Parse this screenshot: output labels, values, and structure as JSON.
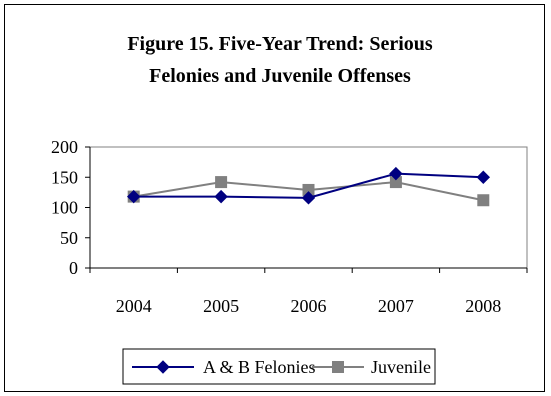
{
  "chart_data": {
    "type": "line",
    "title_lines": [
      "Figure 15.  Five-Year Trend:  Serious",
      "Felonies and Juvenile Offenses"
    ],
    "categories": [
      "2004",
      "2005",
      "2006",
      "2007",
      "2008"
    ],
    "ylim": [
      0,
      200
    ],
    "yticks": [
      "0",
      "50",
      "100",
      "150",
      "200"
    ],
    "grid": false,
    "legend_position": "bottom",
    "series": [
      {
        "name": "A & B Felonies",
        "values": [
          118,
          118,
          116,
          156,
          150
        ],
        "color": "#000080",
        "marker": "diamond"
      },
      {
        "name": "Juvenile",
        "values": [
          118,
          142,
          129,
          142,
          112
        ],
        "color": "#808080",
        "marker": "square"
      }
    ]
  }
}
